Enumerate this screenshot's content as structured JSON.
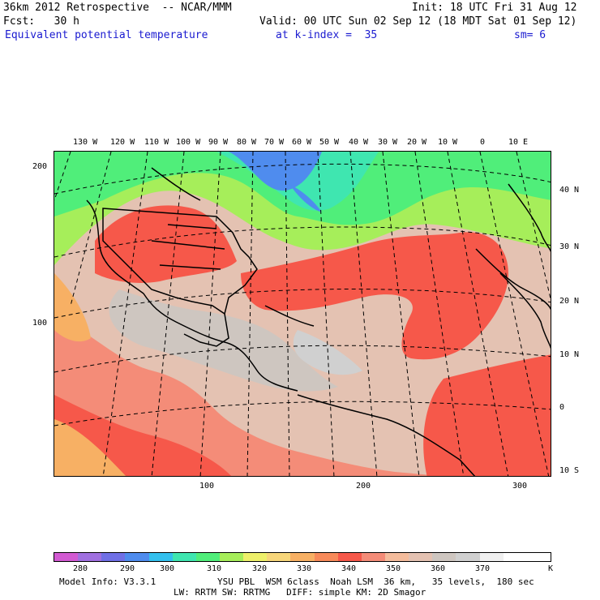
{
  "header": {
    "line1_left": "36km 2012 Retrospective  -- NCAR/MMM",
    "line1_right": "Init: 18 UTC Fri 31 Aug 12",
    "line2_left": "Fcst:   30 h",
    "line2_right": "Valid: 00 UTC Sun 02 Sep 12 (18 MDT Sat 01 Sep 12)",
    "field_name": "Equivalent potential temperature",
    "field_level": "at k-index =  35",
    "smoothing": "sm= 6"
  },
  "map": {
    "lon_labels": [
      "130 W",
      "120 W",
      "110 W",
      "100 W",
      "90 W",
      "80 W",
      "70 W",
      "60 W",
      "50 W",
      "40 W",
      "30 W",
      "20 W",
      "10 W",
      "0",
      "10 E"
    ],
    "lat_labels": [
      "40 N",
      "30 N",
      "20 N",
      "10 N",
      "0",
      "10 S"
    ],
    "y_grid_labels": [
      "200",
      "100"
    ],
    "x_grid_labels": [
      "100",
      "200",
      "300"
    ]
  },
  "legend": {
    "ticks": [
      "280",
      "290",
      "300",
      "310",
      "320",
      "330",
      "340",
      "350",
      "360",
      "370"
    ],
    "unit": "K",
    "colors": [
      "#d25ad2",
      "#a070e0",
      "#7070e6",
      "#4f8cee",
      "#33c0ee",
      "#3fe6b0",
      "#50ee7a",
      "#a6ee5a",
      "#eef06a",
      "#f7d67a",
      "#f7b064",
      "#f78a5a",
      "#f6584a",
      "#f48c78",
      "#f4bc9c",
      "#e4c2b2",
      "#cec6c0",
      "#d0d0d0",
      "#f0f0f0",
      "#ffffff",
      "#ffffff"
    ]
  },
  "footer": {
    "line1_left": "Model Info: V3.3.1",
    "line1_right": "YSU PBL  WSM 6class  Noah LSM  36 km,   35 levels,  180 sec",
    "line2": "LW: RRTM SW: RRTMG   DIFF: simple KM: 2D Smagor"
  }
}
